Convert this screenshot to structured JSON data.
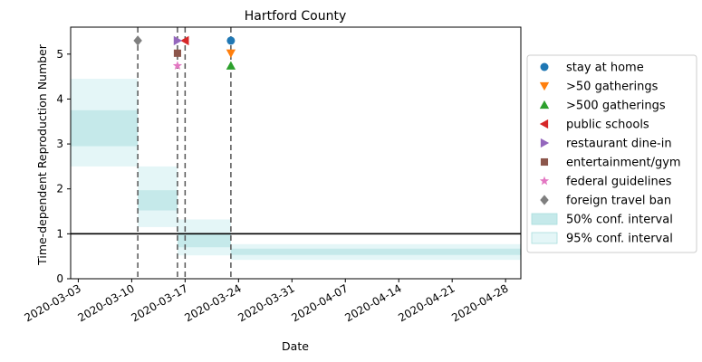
{
  "chart_data": {
    "type": "step-area-with-event-markers",
    "title": "Hartford County",
    "xlabel": "Date",
    "ylabel": "Time-dependent Reproduction Number",
    "xlim": [
      "2020-03-02",
      "2020-04-30"
    ],
    "ylim": [
      0,
      5.6
    ],
    "x_ticks": [
      "2020-03-03",
      "2020-03-10",
      "2020-03-17",
      "2020-03-24",
      "2020-03-31",
      "2020-04-07",
      "2020-04-14",
      "2020-04-21",
      "2020-04-28"
    ],
    "y_ticks": [
      0,
      1,
      2,
      3,
      4,
      5
    ],
    "reference_line": {
      "y": 1,
      "color": "#000000"
    },
    "intervals": [
      {
        "start": "2020-03-02",
        "end": "2020-03-10.8",
        "ci50": [
          2.95,
          3.75
        ],
        "ci95": [
          2.5,
          4.45
        ]
      },
      {
        "start": "2020-03-10.8",
        "end": "2020-03-16",
        "ci50": [
          1.52,
          1.97
        ],
        "ci95": [
          1.15,
          2.5
        ]
      },
      {
        "start": "2020-03-16",
        "end": "2020-03-23",
        "ci50": [
          0.7,
          1.0
        ],
        "ci95": [
          0.52,
          1.32
        ]
      },
      {
        "start": "2020-03-23",
        "end": "2020-04-30",
        "ci50": [
          0.53,
          0.67
        ],
        "ci95": [
          0.42,
          0.77
        ]
      }
    ],
    "event_lines": [
      "2020-03-10.8",
      "2020-03-16",
      "2020-03-17",
      "2020-03-23"
    ],
    "events": [
      {
        "name": "stay at home",
        "date": "2020-03-23",
        "y": 5.3,
        "marker": "circle",
        "color": "#1f77b4"
      },
      {
        "name": ">50 gatherings",
        "date": "2020-03-23",
        "y": 5.02,
        "marker": "triangle-down",
        "color": "#ff7f0e"
      },
      {
        "name": ">500 gatherings",
        "date": "2020-03-23",
        "y": 4.74,
        "marker": "triangle-up",
        "color": "#2ca02c"
      },
      {
        "name": "public schools",
        "date": "2020-03-17",
        "y": 5.3,
        "marker": "triangle-left",
        "color": "#d62728"
      },
      {
        "name": "restaurant dine-in",
        "date": "2020-03-16",
        "y": 5.3,
        "marker": "triangle-right",
        "color": "#9467bd"
      },
      {
        "name": "entertainment/gym",
        "date": "2020-03-16",
        "y": 5.02,
        "marker": "square",
        "color": "#8c564b"
      },
      {
        "name": "federal guidelines",
        "date": "2020-03-16",
        "y": 4.74,
        "marker": "star",
        "color": "#e377c2"
      },
      {
        "name": "foreign travel ban",
        "date": "2020-03-10.8",
        "y": 5.3,
        "marker": "diamond",
        "color": "#7f7f7f"
      }
    ],
    "legend": {
      "placement": "right",
      "items": [
        {
          "label": "stay at home",
          "marker": "circle",
          "color": "#1f77b4"
        },
        {
          "label": ">50 gatherings",
          "marker": "triangle-down",
          "color": "#ff7f0e"
        },
        {
          "label": ">500 gatherings",
          "marker": "triangle-up",
          "color": "#2ca02c"
        },
        {
          "label": "public schools",
          "marker": "triangle-left",
          "color": "#d62728"
        },
        {
          "label": "restaurant dine-in",
          "marker": "triangle-right",
          "color": "#9467bd"
        },
        {
          "label": "entertainment/gym",
          "marker": "square",
          "color": "#8c564b"
        },
        {
          "label": "federal guidelines",
          "marker": "star",
          "color": "#e377c2"
        },
        {
          "label": "foreign travel ban",
          "marker": "diamond",
          "color": "#7f7f7f"
        },
        {
          "label": "50% conf. interval",
          "marker": "patch",
          "color": "#c5e9ea"
        },
        {
          "label": "95% conf. interval",
          "marker": "patch",
          "color": "#e4f6f7"
        }
      ]
    },
    "colors": {
      "ci50": "#c5e9ea",
      "ci95": "#e4f6f7",
      "event_line": "#555555"
    },
    "grid": false
  }
}
